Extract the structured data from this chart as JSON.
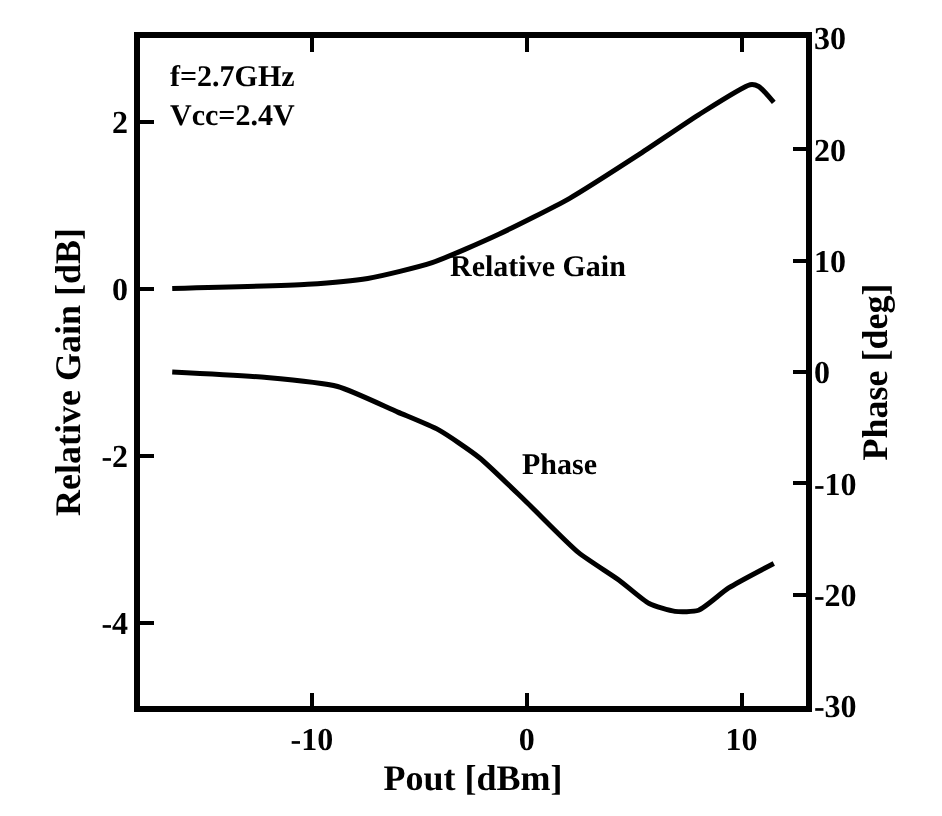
{
  "chart_data": {
    "type": "line",
    "xlabel": "Pout [dBm]",
    "ylabel": "Relative Gain [dB]",
    "y2label": "Phase [deg]",
    "annotations": [
      "f=2.7GHz\nVcc=2.4V"
    ],
    "xlim": [
      -18,
      13
    ],
    "xticks": [
      -10,
      0,
      10
    ],
    "ylim": [
      -5,
      3
    ],
    "yticks": [
      -4,
      -2,
      0,
      2
    ],
    "y2lim": [
      -30,
      30
    ],
    "y2ticks": [
      -30,
      -20,
      -10,
      0,
      10,
      20,
      30
    ],
    "grid": false,
    "legend": false,
    "marker": "none",
    "line_style": "solid",
    "series": [
      {
        "name": "Relative Gain",
        "color": "#000000",
        "x": [
          -16.5,
          -10.2,
          -7.4,
          -4.4,
          -1.3,
          2.0,
          5.2,
          8.0,
          10.4,
          10.8,
          11.5
        ],
        "values": [
          0,
          0.05,
          0.12,
          0.31,
          0.65,
          1.08,
          1.6,
          2.08,
          2.44,
          2.42,
          2.23
        ]
      },
      {
        "name": "Phase",
        "color": "#000000",
        "axis": "y2",
        "x": [
          -16.5,
          -12.1,
          -8.8,
          -6.0,
          -4.1,
          -2.2,
          0,
          2.4,
          4.3,
          5.7,
          6.9,
          8.0,
          9.4,
          11.5
        ],
        "values": [
          0,
          -0.5,
          -1.3,
          -3.6,
          -5.2,
          -7.7,
          -11.7,
          -16.2,
          -18.7,
          -20.8,
          -21.5,
          -21.4,
          -19.4,
          -17.2
        ]
      }
    ]
  }
}
